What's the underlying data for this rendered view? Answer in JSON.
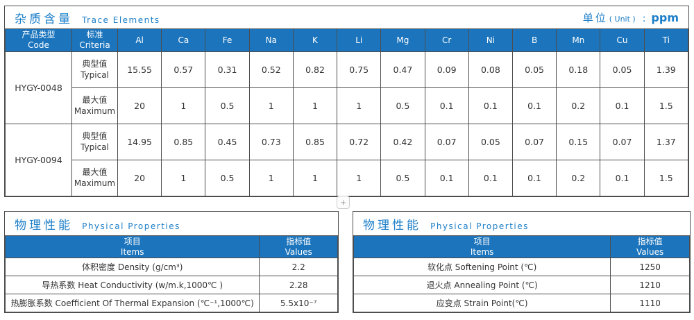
{
  "colors": {
    "header_blue": "#1b74bc",
    "title_blue": "#1b7ec8",
    "border_dark": "#4d4d4d"
  },
  "trace_table": {
    "title_zh": "杂质含量",
    "title_en": "Trace Elements",
    "unit_zh": "单位",
    "unit_en": "( Unit )",
    "unit_sep": ":",
    "unit_value": "ppm",
    "header_code_zh": "产品类型",
    "header_code_en": "Code",
    "header_criteria_zh": "标准",
    "header_criteria_en": "Criteria",
    "elements": [
      "Al",
      "Ca",
      "Fe",
      "Na",
      "K",
      "Li",
      "Mg",
      "Cr",
      "Ni",
      "B",
      "Mn",
      "Cu",
      "Ti"
    ],
    "rows": [
      {
        "code": "HYGY-0048",
        "typical": {
          "label_zh": "典型值",
          "label_en": "Typical",
          "values": [
            "15.55",
            "0.57",
            "0.31",
            "0.52",
            "0.82",
            "0.75",
            "0.47",
            "0.09",
            "0.08",
            "0.05",
            "0.18",
            "0.05",
            "1.39"
          ]
        },
        "maximum": {
          "label_zh": "最大值",
          "label_en": "Maximum",
          "values": [
            "20",
            "1",
            "0.5",
            "1",
            "1",
            "1",
            "0.5",
            "0.1",
            "0.1",
            "0.1",
            "0.2",
            "0.1",
            "1.5"
          ]
        }
      },
      {
        "code": "HYGY-0094",
        "typical": {
          "label_zh": "典型值",
          "label_en": "Typical",
          "values": [
            "14.95",
            "0.85",
            "0.45",
            "0.73",
            "0.85",
            "0.72",
            "0.42",
            "0.07",
            "0.05",
            "0.07",
            "0.15",
            "0.07",
            "1.37"
          ]
        },
        "maximum": {
          "label_zh": "最大值",
          "label_en": "Maximum",
          "values": [
            "20",
            "1",
            "0.5",
            "1",
            "1",
            "1",
            "0.5",
            "0.1",
            "0.1",
            "0.1",
            "0.2",
            "0.1",
            "1.5"
          ]
        }
      }
    ]
  },
  "add_button": {
    "label": "+"
  },
  "physical_left": {
    "title_zh": "物理性能",
    "title_en": "Physical Properties",
    "header_items_zh": "项目",
    "header_items_en": "Items",
    "header_values_zh": "指标值",
    "header_values_en": "Values",
    "rows": [
      {
        "item": "体积密度 Density (g/cm³)",
        "value": "2.2"
      },
      {
        "item": "导热系数 Heat Conductivity (w/m.k,1000℃ )",
        "value": "2.28"
      },
      {
        "item": "热膨胀系数 Coefficient Of Thermal Expansion (℃⁻¹,1000℃)",
        "value": "5.5x10⁻⁷"
      }
    ]
  },
  "physical_right": {
    "title_zh": "物理性能",
    "title_en": "Physical Properties",
    "header_items_zh": "项目",
    "header_items_en": "Items",
    "header_values_zh": "指标值",
    "header_values_en": "Values",
    "rows": [
      {
        "item": "软化点 Softening Point (℃)",
        "value": "1250"
      },
      {
        "item": "退火点 Annealing Point (℃)",
        "value": "1210"
      },
      {
        "item": "应变点 Strain Point(℃)",
        "value": "1110"
      }
    ]
  }
}
